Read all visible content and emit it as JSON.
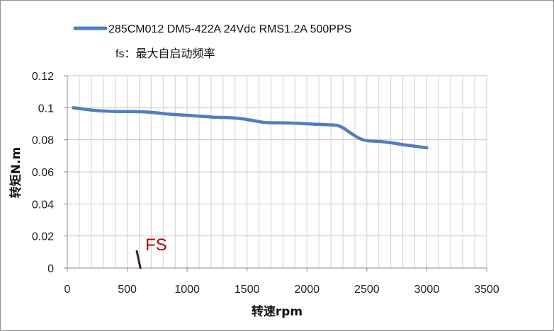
{
  "chart_data": {
    "type": "line",
    "title": "",
    "legend": {
      "placement": "top",
      "entries": [
        {
          "name": "285CM012 DM5-422A 24Vdc RMS1.2A 500PPS",
          "color": "#4f7fbf"
        }
      ],
      "note": "fs：最大自启动频率"
    },
    "xlabel": "转速rpm",
    "ylabel": "转矩N.m",
    "xlim": [
      0,
      3500
    ],
    "ylim": [
      0,
      0.12
    ],
    "xticks": [
      0,
      500,
      1000,
      1500,
      2000,
      2500,
      3000,
      3500
    ],
    "yticks": [
      0,
      0.02,
      0.04,
      0.06,
      0.08,
      0.1,
      0.12
    ],
    "xtick_labels": [
      "0",
      "500",
      "1000",
      "1500",
      "2000",
      "2500",
      "3000",
      "3500"
    ],
    "ytick_labels": [
      "0",
      "0.02",
      "0.04",
      "0.06",
      "0.08",
      "0.1",
      "0.12"
    ],
    "grid": {
      "x": true,
      "y": true,
      "minor_x_step": 100
    },
    "series": [
      {
        "name": "285CM012 DM5-422A 24Vdc RMS1.2A 500PPS",
        "color": "#4f7fbf",
        "x": [
          50,
          150,
          250,
          350,
          450,
          550,
          650,
          750,
          850,
          950,
          1050,
          1150,
          1250,
          1350,
          1450,
          1550,
          1650,
          1750,
          1850,
          1950,
          2050,
          2150,
          2250,
          2300,
          2350,
          2400,
          2450,
          2500,
          2600,
          2700,
          2800,
          2900,
          3000
        ],
        "y": [
          0.1,
          0.099,
          0.0982,
          0.0978,
          0.0976,
          0.0976,
          0.0974,
          0.0968,
          0.096,
          0.0955,
          0.095,
          0.0945,
          0.094,
          0.0938,
          0.0932,
          0.092,
          0.0908,
          0.0906,
          0.0905,
          0.0902,
          0.0898,
          0.0895,
          0.089,
          0.0875,
          0.085,
          0.0825,
          0.0805,
          0.0795,
          0.079,
          0.0782,
          0.077,
          0.076,
          0.075
        ]
      }
    ],
    "annotations": [
      {
        "text": "FS",
        "color": "#c00000",
        "segment": {
          "x": [
            580,
            610
          ],
          "y": [
            0.0105,
            0.0
          ]
        }
      }
    ]
  }
}
